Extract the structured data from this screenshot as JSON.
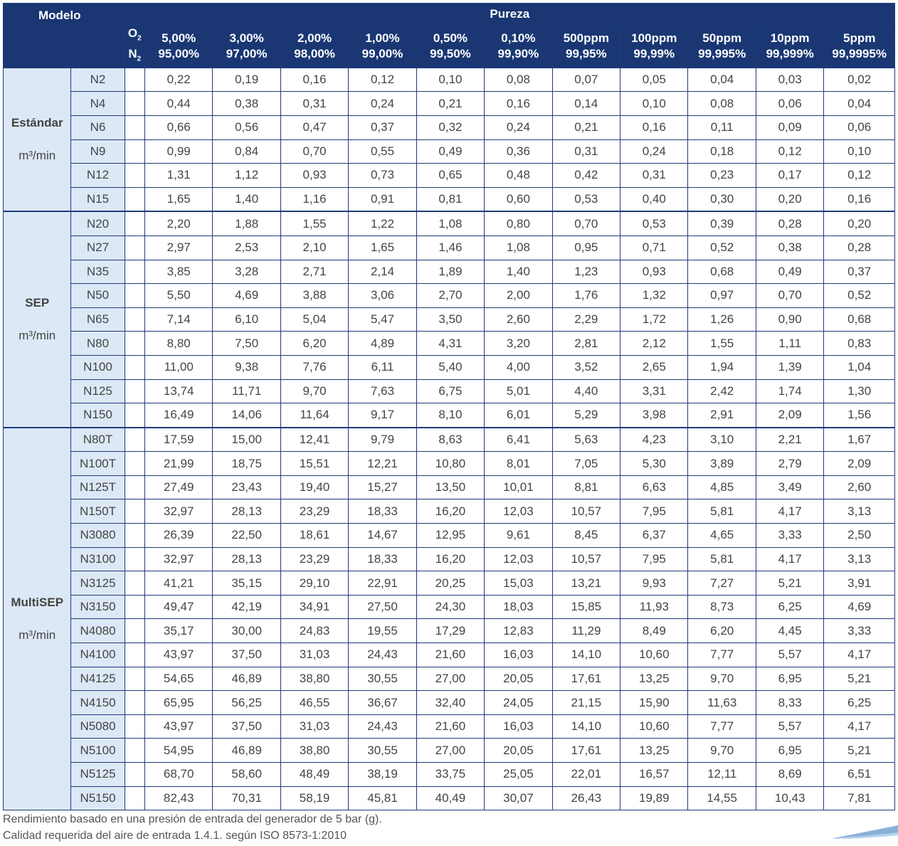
{
  "header": {
    "modelo": "Modelo",
    "pureza": "Pureza",
    "o2": "O",
    "n2": "N",
    "sub": "2",
    "columns": [
      {
        "o2": "5,00%",
        "n2": "95,00%"
      },
      {
        "o2": "3,00%",
        "n2": "97,00%"
      },
      {
        "o2": "2,00%",
        "n2": "98,00%"
      },
      {
        "o2": "1,00%",
        "n2": "99,00%"
      },
      {
        "o2": "0,50%",
        "n2": "99,50%"
      },
      {
        "o2": "0,10%",
        "n2": "99,90%"
      },
      {
        "o2": "500ppm",
        "n2": "99,95%"
      },
      {
        "o2": "100ppm",
        "n2": "99,99%"
      },
      {
        "o2": "50ppm",
        "n2": "99,995%"
      },
      {
        "o2": "10ppm",
        "n2": "99,999%"
      },
      {
        "o2": "5ppm",
        "n2": "99,9995%"
      }
    ]
  },
  "groups": [
    {
      "name": "Estándar",
      "unit": "m³/min",
      "rows": [
        {
          "model": "N2",
          "values": [
            "0,22",
            "0,19",
            "0,16",
            "0,12",
            "0,10",
            "0,08",
            "0,07",
            "0,05",
            "0,04",
            "0,03",
            "0,02"
          ]
        },
        {
          "model": "N4",
          "values": [
            "0,44",
            "0,38",
            "0,31",
            "0,24",
            "0,21",
            "0,16",
            "0,14",
            "0,10",
            "0,08",
            "0,06",
            "0,04"
          ]
        },
        {
          "model": "N6",
          "values": [
            "0,66",
            "0,56",
            "0,47",
            "0,37",
            "0,32",
            "0,24",
            "0,21",
            "0,16",
            "0,11",
            "0,09",
            "0,06"
          ]
        },
        {
          "model": "N9",
          "values": [
            "0,99",
            "0,84",
            "0,70",
            "0,55",
            "0,49",
            "0,36",
            "0,31",
            "0,24",
            "0,18",
            "0,12",
            "0,10"
          ]
        },
        {
          "model": "N12",
          "values": [
            "1,31",
            "1,12",
            "0,93",
            "0,73",
            "0,65",
            "0,48",
            "0,42",
            "0,31",
            "0,23",
            "0,17",
            "0,12"
          ]
        },
        {
          "model": "N15",
          "values": [
            "1,65",
            "1,40",
            "1,16",
            "0,91",
            "0,81",
            "0,60",
            "0,53",
            "0,40",
            "0,30",
            "0,20",
            "0,16"
          ]
        }
      ]
    },
    {
      "name": "SEP",
      "unit": "m³/min",
      "rows": [
        {
          "model": "N20",
          "values": [
            "2,20",
            "1,88",
            "1,55",
            "1,22",
            "1,08",
            "0,80",
            "0,70",
            "0,53",
            "0,39",
            "0,28",
            "0,20"
          ]
        },
        {
          "model": "N27",
          "values": [
            "2,97",
            "2,53",
            "2,10",
            "1,65",
            "1,46",
            "1,08",
            "0,95",
            "0,71",
            "0,52",
            "0,38",
            "0,28"
          ]
        },
        {
          "model": "N35",
          "values": [
            "3,85",
            "3,28",
            "2,71",
            "2,14",
            "1,89",
            "1,40",
            "1,23",
            "0,93",
            "0,68",
            "0,49",
            "0,37"
          ]
        },
        {
          "model": "N50",
          "values": [
            "5,50",
            "4,69",
            "3,88",
            "3,06",
            "2,70",
            "2,00",
            "1,76",
            "1,32",
            "0,97",
            "0,70",
            "0,52"
          ]
        },
        {
          "model": "N65",
          "values": [
            "7,14",
            "6,10",
            "5,04",
            "5,47",
            "3,50",
            "2,60",
            "2,29",
            "1,72",
            "1,26",
            "0,90",
            "0,68"
          ]
        },
        {
          "model": "N80",
          "values": [
            "8,80",
            "7,50",
            "6,20",
            "4,89",
            "4,31",
            "3,20",
            "2,81",
            "2,12",
            "1,55",
            "1,11",
            "0,83"
          ]
        },
        {
          "model": "N100",
          "values": [
            "11,00",
            "9,38",
            "7,76",
            "6,11",
            "5,40",
            "4,00",
            "3,52",
            "2,65",
            "1,94",
            "1,39",
            "1,04"
          ]
        },
        {
          "model": "N125",
          "values": [
            "13,74",
            "11,71",
            "9,70",
            "7,63",
            "6,75",
            "5,01",
            "4,40",
            "3,31",
            "2,42",
            "1,74",
            "1,30"
          ]
        },
        {
          "model": "N150",
          "values": [
            "16,49",
            "14,06",
            "11,64",
            "9,17",
            "8,10",
            "6,01",
            "5,29",
            "3,98",
            "2,91",
            "2,09",
            "1,56"
          ]
        }
      ]
    },
    {
      "name": "MultiSEP",
      "unit": "m³/min",
      "rows": [
        {
          "model": "N80T",
          "values": [
            "17,59",
            "15,00",
            "12,41",
            "9,79",
            "8,63",
            "6,41",
            "5,63",
            "4,23",
            "3,10",
            "2,21",
            "1,67"
          ]
        },
        {
          "model": "N100T",
          "values": [
            "21,99",
            "18,75",
            "15,51",
            "12,21",
            "10,80",
            "8,01",
            "7,05",
            "5,30",
            "3,89",
            "2,79",
            "2,09"
          ]
        },
        {
          "model": "N125T",
          "values": [
            "27,49",
            "23,43",
            "19,40",
            "15,27",
            "13,50",
            "10,01",
            "8,81",
            "6,63",
            "4,85",
            "3,49",
            "2,60"
          ]
        },
        {
          "model": "N150T",
          "values": [
            "32,97",
            "28,13",
            "23,29",
            "18,33",
            "16,20",
            "12,03",
            "10,57",
            "7,95",
            "5,81",
            "4,17",
            "3,13"
          ]
        },
        {
          "model": "N3080",
          "values": [
            "26,39",
            "22,50",
            "18,61",
            "14,67",
            "12,95",
            "9,61",
            "8,45",
            "6,37",
            "4,65",
            "3,33",
            "2,50"
          ]
        },
        {
          "model": "N3100",
          "values": [
            "32,97",
            "28,13",
            "23,29",
            "18,33",
            "16,20",
            "12,03",
            "10,57",
            "7,95",
            "5,81",
            "4,17",
            "3,13"
          ]
        },
        {
          "model": "N3125",
          "values": [
            "41,21",
            "35,15",
            "29,10",
            "22,91",
            "20,25",
            "15,03",
            "13,21",
            "9,93",
            "7,27",
            "5,21",
            "3,91"
          ]
        },
        {
          "model": "N3150",
          "values": [
            "49,47",
            "42,19",
            "34,91",
            "27,50",
            "24,30",
            "18,03",
            "15,85",
            "11,93",
            "8,73",
            "6,25",
            "4,69"
          ]
        },
        {
          "model": "N4080",
          "values": [
            "35,17",
            "30,00",
            "24,83",
            "19,55",
            "17,29",
            "12,83",
            "11,29",
            "8,49",
            "6,20",
            "4,45",
            "3,33"
          ]
        },
        {
          "model": "N4100",
          "values": [
            "43,97",
            "37,50",
            "31,03",
            "24,43",
            "21,60",
            "16,03",
            "14,10",
            "10,60",
            "7,77",
            "5,57",
            "4,17"
          ]
        },
        {
          "model": "N4125",
          "values": [
            "54,65",
            "46,89",
            "38,80",
            "30,55",
            "27,00",
            "20,05",
            "17,61",
            "13,25",
            "9,70",
            "6,95",
            "5,21"
          ]
        },
        {
          "model": "N4150",
          "values": [
            "65,95",
            "56,25",
            "46,55",
            "36,67",
            "32,40",
            "24,05",
            "21,15",
            "15,90",
            "11,63",
            "8,33",
            "6,25"
          ]
        },
        {
          "model": "N5080",
          "values": [
            "43,97",
            "37,50",
            "31,03",
            "24,43",
            "21,60",
            "16,03",
            "14,10",
            "10,60",
            "7,77",
            "5,57",
            "4,17"
          ]
        },
        {
          "model": "N5100",
          "values": [
            "54,95",
            "46,89",
            "38,80",
            "30,55",
            "27,00",
            "20,05",
            "17,61",
            "13,25",
            "9,70",
            "6,95",
            "5,21"
          ]
        },
        {
          "model": "N5125",
          "values": [
            "68,70",
            "58,60",
            "48,49",
            "38,19",
            "33,75",
            "25,05",
            "22,01",
            "16,57",
            "12,11",
            "8,69",
            "6,51"
          ]
        },
        {
          "model": "N5150",
          "values": [
            "82,43",
            "70,31",
            "58,19",
            "45,81",
            "40,49",
            "30,07",
            "26,43",
            "19,89",
            "14,55",
            "10,43",
            "7,81"
          ]
        }
      ]
    }
  ],
  "notes": [
    "Rendimiento basado en una presión de entrada del generador de 5 bar (g).",
    "Calidad requerida del aire de entrada 1.4.1. según ISO 8573-1:2010"
  ],
  "colors": {
    "header": "#1a3773",
    "model_bg": "#dce8f6",
    "text": "#444444"
  }
}
